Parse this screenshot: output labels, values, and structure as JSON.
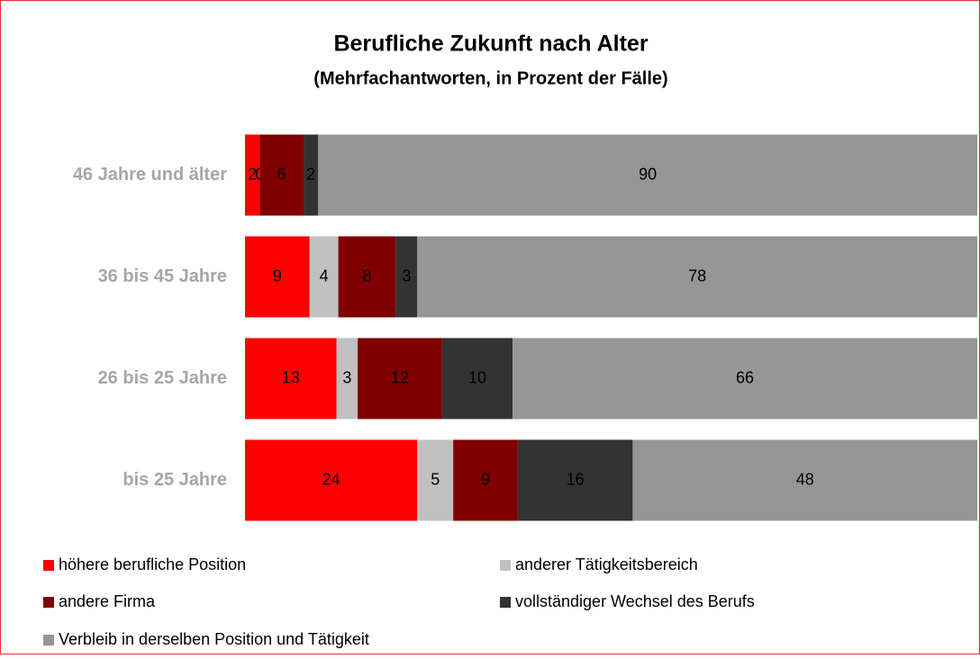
{
  "chart_data": {
    "type": "bar",
    "orientation": "horizontal",
    "stacked": "percent",
    "title": "Berufliche Zukunft nach Alter",
    "subtitle": "(Mehrfachantworten, in Prozent der Fälle)",
    "categories": [
      "46 Jahre und älter",
      "36 bis 45 Jahre",
      "26 bis 25 Jahre",
      "bis 25 Jahre"
    ],
    "series": [
      {
        "name": "höhere berufliche Position",
        "color": "#ff0000",
        "values": [
          2,
          9,
          13,
          24
        ]
      },
      {
        "name": "anderer Tätigkeitsbereich",
        "color": "#c0c0c0",
        "values": [
          0,
          4,
          3,
          5
        ]
      },
      {
        "name": "andere Firma",
        "color": "#800000",
        "values": [
          6,
          8,
          12,
          9
        ]
      },
      {
        "name": "vollständiger Wechsel des Berufs",
        "color": "#333333",
        "values": [
          2,
          3,
          10,
          16
        ]
      },
      {
        "name": "Verbleib in derselben Position und Tätigkeit",
        "color": "#969696",
        "values": [
          90,
          78,
          66,
          48
        ]
      }
    ],
    "legend": "bottom"
  }
}
